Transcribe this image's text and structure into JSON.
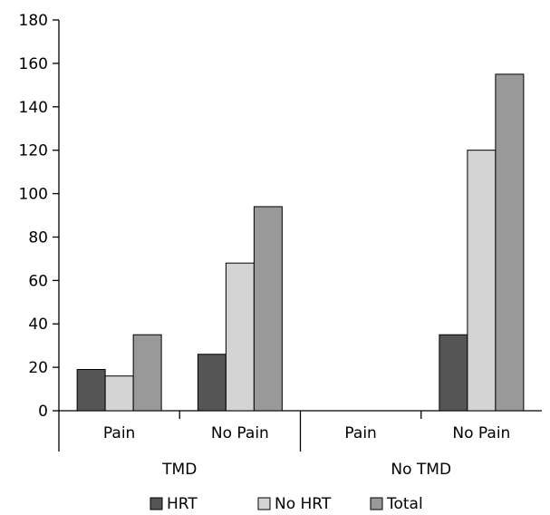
{
  "chart_data": {
    "type": "bar",
    "title": "",
    "xlabel": "",
    "ylabel": "",
    "ylim": [
      0,
      180
    ],
    "yticks": [
      0,
      20,
      40,
      60,
      80,
      100,
      120,
      140,
      160,
      180
    ],
    "grid": false,
    "legend": "bottom",
    "groups": [
      {
        "label": "TMD",
        "categories": [
          "Pain",
          "No Pain"
        ]
      },
      {
        "label": "No TMD",
        "categories": [
          "Pain",
          "No Pain"
        ]
      }
    ],
    "categories": [
      "Pain",
      "No Pain",
      "Pain",
      "No Pain"
    ],
    "series": [
      {
        "name": "HRT",
        "color": "#555555",
        "values": [
          19,
          26,
          0,
          35
        ]
      },
      {
        "name": "No HRT",
        "color": "#d4d4d4",
        "values": [
          16,
          68,
          0,
          120
        ]
      },
      {
        "name": "Total",
        "color": "#999999",
        "values": [
          35,
          94,
          0,
          155
        ]
      }
    ]
  }
}
